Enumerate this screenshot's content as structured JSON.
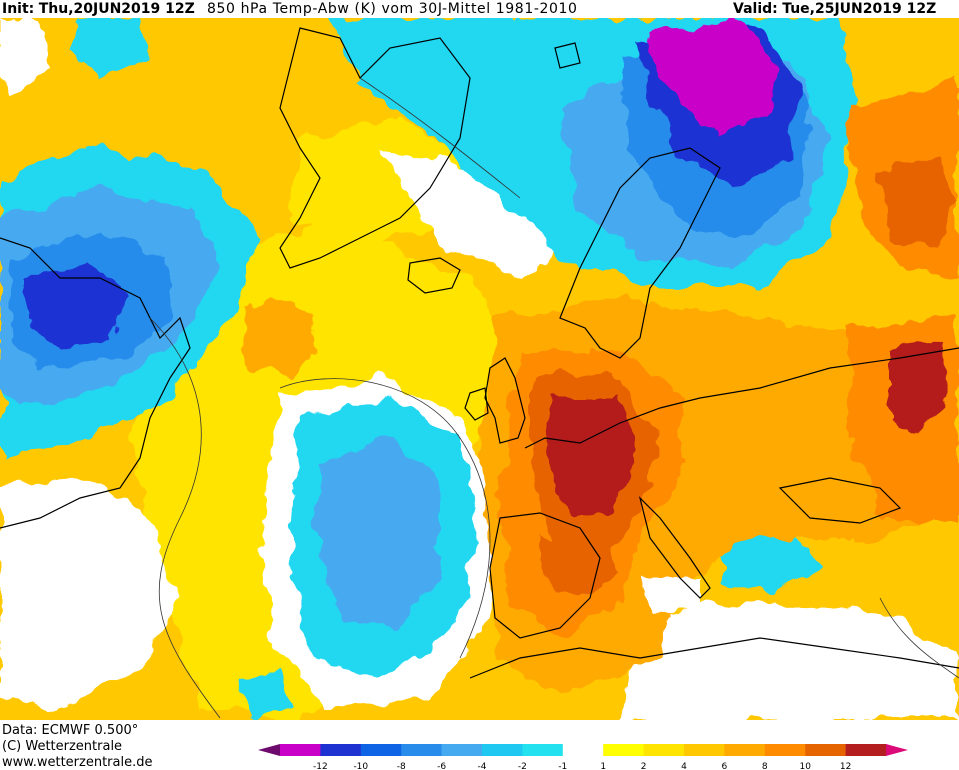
{
  "header": {
    "init_label": "Init:",
    "init_value": "Thu,20JUN2019 12Z",
    "title": "850 hPa Temp-Abw (K) vom 30J-Mittel 1981-2010",
    "valid_label": "Valid:",
    "valid_value": "Tue,25JUN2019 12Z"
  },
  "footer": {
    "data_source": "Data: ECMWF  0.500°",
    "copyright": "(C) Wetterzentrale",
    "url": "www.wetterzentrale.de"
  },
  "legend": {
    "colors": [
      "#6e0a6e",
      "#c800c8",
      "#1e32d2",
      "#0f64e6",
      "#288ceb",
      "#46aaf0",
      "#1ec8f0",
      "#23e1ee",
      "#ffffff",
      "#ffff00",
      "#ffe400",
      "#ffc800",
      "#ffaa00",
      "#ff8c00",
      "#e66400",
      "#b41e1e",
      "#dc0a78"
    ],
    "tick_labels": [
      "-12",
      "-10",
      "-8",
      "-6",
      "-4",
      "-2",
      "-1",
      "1",
      "2",
      "4",
      "6",
      "8",
      "10",
      "12"
    ]
  },
  "map_colors": {
    "cold_extreme": "#c800c8",
    "cold_strong": "#1e32d2",
    "cold_mid": "#288ceb",
    "cold_light": "#46aaf0",
    "cool": "#23d7f0",
    "neutral": "#ffffff",
    "warm_light": "#ffe400",
    "warm": "#ffc800",
    "warm_mid": "#ffaa00",
    "hot": "#ff8c00",
    "hot_strong": "#e66400",
    "hot_extreme": "#b41e1e",
    "coastline": "#000000",
    "contour": "#333333"
  }
}
